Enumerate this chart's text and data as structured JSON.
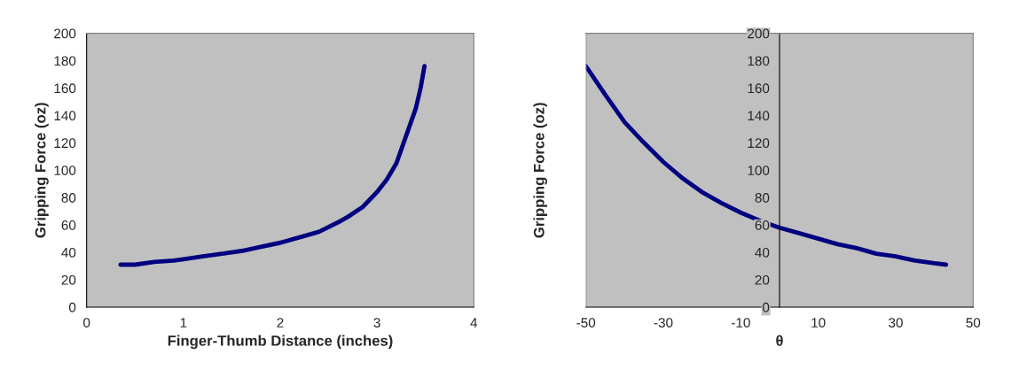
{
  "chart_data": [
    {
      "type": "line",
      "xlabel": "Finger-Thumb Distance (inches)",
      "ylabel": "Gripping Force (oz)",
      "xlim": [
        0,
        4
      ],
      "xticks": [
        0,
        1,
        2,
        3,
        4
      ],
      "ylim": [
        0,
        200
      ],
      "yticks": [
        0,
        20,
        40,
        60,
        80,
        100,
        120,
        140,
        160,
        180,
        200
      ],
      "grid": false,
      "legend": false,
      "marker": "none",
      "line_style": "solid",
      "series": [
        {
          "color": "#000080",
          "x": [
            0.35,
            0.5,
            0.7,
            0.9,
            1.0,
            1.2,
            1.4,
            1.6,
            1.8,
            2.0,
            2.2,
            2.4,
            2.6,
            2.7,
            2.85,
            3.0,
            3.1,
            3.2,
            3.3,
            3.4,
            3.45,
            3.49
          ],
          "values": [
            31,
            31,
            33,
            34,
            35,
            37,
            39,
            41,
            44,
            47,
            51,
            55,
            62,
            66,
            73,
            84,
            93,
            105,
            125,
            145,
            160,
            176
          ]
        }
      ]
    },
    {
      "type": "line",
      "xlabel": "θ",
      "ylabel": "Gripping Force (oz)",
      "xlim": [
        -50,
        50
      ],
      "xticks": [
        -50,
        -30,
        -10,
        10,
        30,
        50
      ],
      "ylim": [
        0,
        200
      ],
      "yticks": [
        0,
        20,
        40,
        60,
        80,
        100,
        120,
        140,
        160,
        180,
        200
      ],
      "grid": false,
      "legend": false,
      "marker": "none",
      "line_style": "solid",
      "series": [
        {
          "color": "#000080",
          "x": [
            -50,
            -45,
            -40,
            -35,
            -30,
            -25,
            -20,
            -15,
            -10,
            -5,
            0,
            5,
            10,
            15,
            20,
            25,
            30,
            35,
            40,
            43
          ],
          "values": [
            176,
            155,
            135,
            120,
            106,
            94,
            84,
            76,
            69,
            63,
            58,
            54,
            50,
            46,
            43,
            39,
            37,
            34,
            32,
            31
          ]
        }
      ]
    }
  ]
}
